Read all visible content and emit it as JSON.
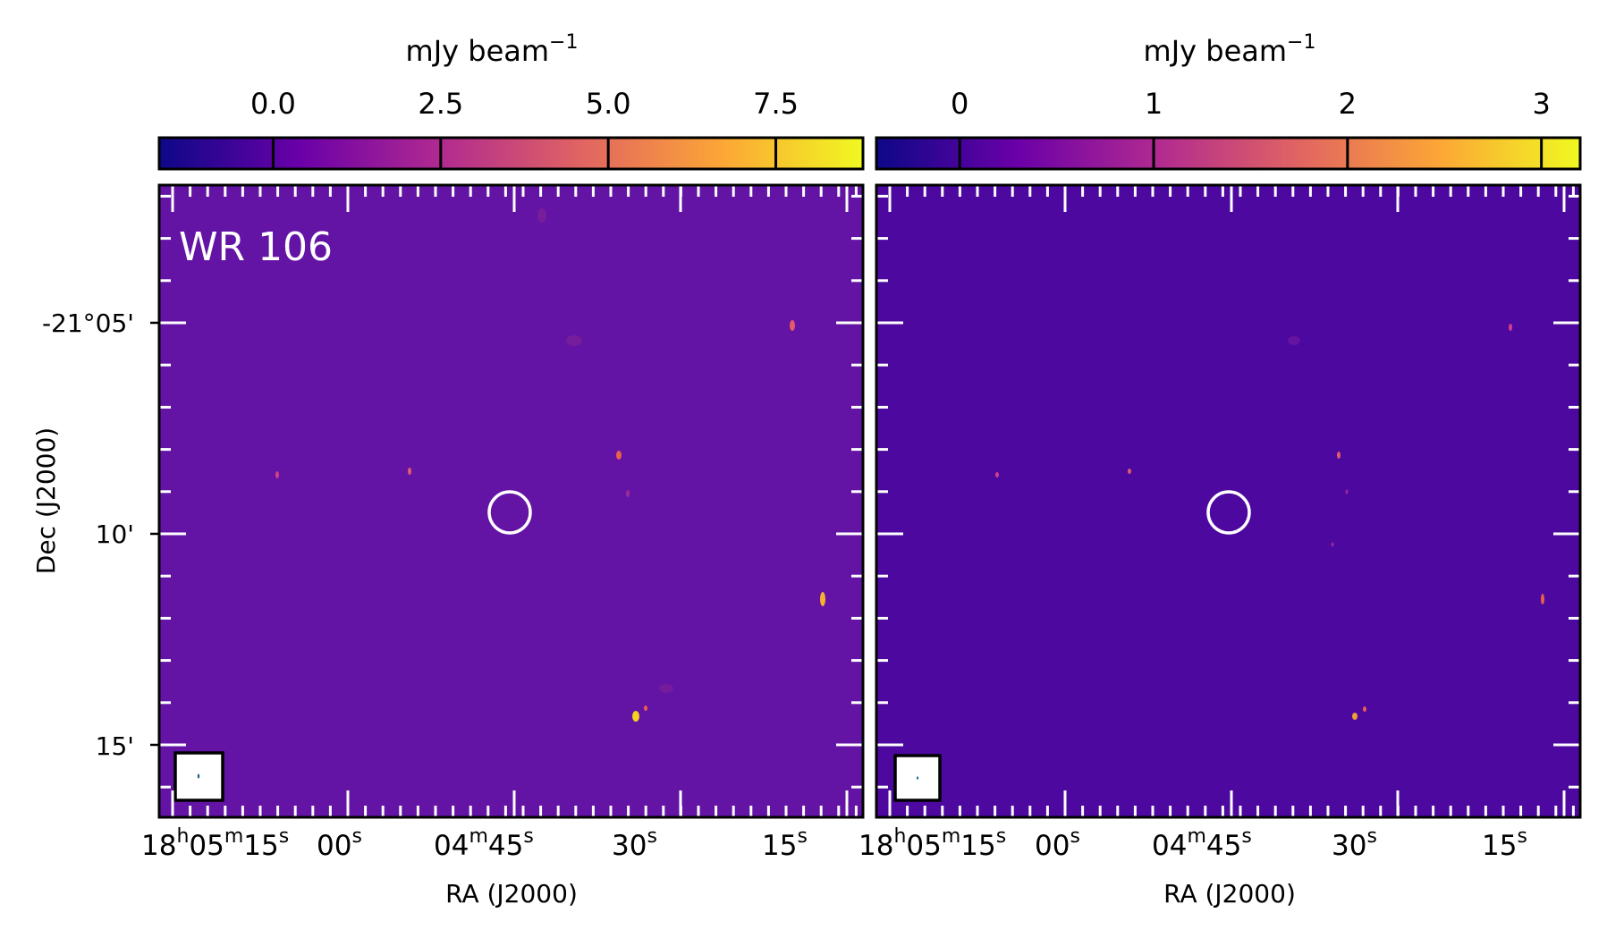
{
  "colormap": [
    "#0d0887",
    "#6a00a8",
    "#b12a90",
    "#e16462",
    "#fca636",
    "#f0f921"
  ],
  "panels": [
    {
      "label": "WR 106",
      "colorbar": {
        "unit": "mJy beam",
        "unit_exp": "−1",
        "ticks": [
          "0.0",
          "2.5",
          "5.0",
          "7.5"
        ],
        "vmin": -1.7,
        "vmax": 8.8
      },
      "background": "#6414a4",
      "dec_label": "Dec (J2000)",
      "dec_ticks": [
        "-21°05'",
        "10'",
        "15'"
      ],
      "ra_label": "RA (J2000)",
      "ra_ticks": [
        {
          "h": "18",
          "m": "05",
          "s": "15"
        },
        {
          "s": "00"
        },
        {
          "m": "04",
          "s": "45"
        },
        {
          "s": "30"
        },
        {
          "s": "15"
        }
      ]
    },
    {
      "label": "",
      "colorbar": {
        "unit": "mJy beam",
        "unit_exp": "−1",
        "ticks": [
          "0",
          "1",
          "2",
          "3"
        ],
        "vmin": -0.43,
        "vmax": 3.2
      },
      "background": "#4d08a0",
      "dec_label": "",
      "dec_ticks": [],
      "ra_label": "RA (J2000)",
      "ra_ticks": [
        {
          "h": "18",
          "m": "05",
          "s": "15"
        },
        {
          "s": "00"
        },
        {
          "m": "04",
          "s": "45"
        },
        {
          "s": "30"
        },
        {
          "s": "15"
        }
      ]
    }
  ]
}
